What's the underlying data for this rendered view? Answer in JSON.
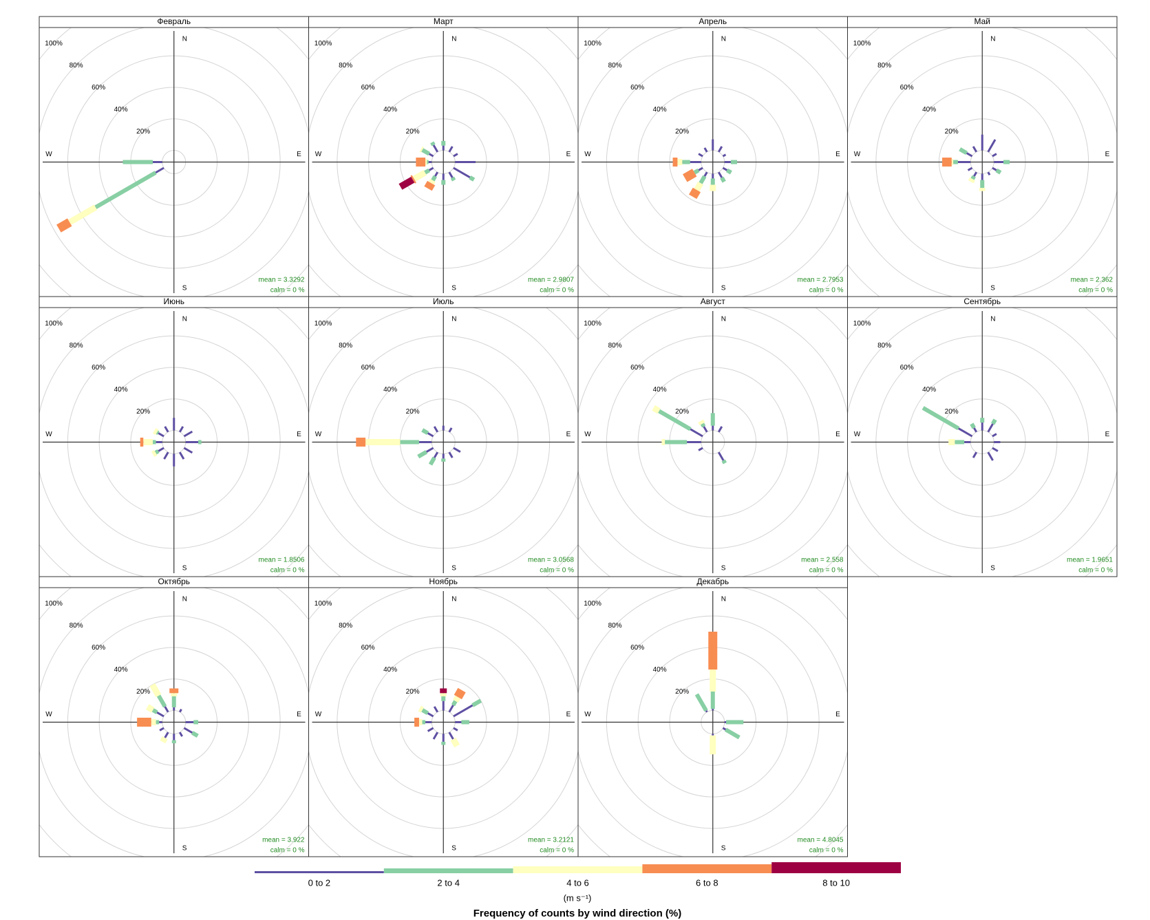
{
  "legend": {
    "title": "Frequency of counts by wind direction (%)",
    "unit": "(m s⁻¹)",
    "items": [
      {
        "name": "0 to 2",
        "color": "#5e4fa2"
      },
      {
        "name": "2 to 4",
        "color": "#88cfa4"
      },
      {
        "name": "4 to 6",
        "color": "#ffffbf"
      },
      {
        "name": "6 to 8",
        "color": "#f88d52"
      },
      {
        "name": "8 to 10",
        "color": "#9e0142"
      }
    ]
  },
  "compass": [
    "N",
    "E",
    "S",
    "W"
  ],
  "directions": [
    0,
    30,
    60,
    90,
    120,
    150,
    180,
    210,
    240,
    270,
    300,
    330
  ],
  "rticks": [
    {
      "value": 20,
      "label": "20%"
    },
    {
      "value": 40,
      "label": "40%"
    },
    {
      "value": 60,
      "label": "60%"
    },
    {
      "value": 80,
      "label": "80%"
    },
    {
      "value": 100,
      "label": "100%"
    }
  ],
  "chart_data": [
    {
      "type": "windrose",
      "title": "Февраль",
      "annotations": [
        "mean = 3.3292",
        "calm = 0 %"
      ],
      "values": [
        [
          0,
          0,
          0,
          0,
          0,
          0,
          0,
          0,
          6,
          6,
          0,
          0
        ],
        [
          0,
          0,
          0,
          0,
          0,
          0,
          0,
          0,
          44,
          19,
          0,
          0
        ],
        [
          0,
          0,
          0,
          0,
          0,
          0,
          0,
          0,
          19,
          0,
          0,
          0
        ],
        [
          0,
          0,
          0,
          0,
          0,
          0,
          0,
          0,
          8,
          0,
          0,
          0
        ],
        [
          0,
          0,
          0,
          0,
          0,
          0,
          0,
          0,
          0,
          0,
          0,
          0
        ]
      ]
    },
    {
      "type": "windrose",
      "title": "Март",
      "annotations": [
        "mean = 2.9807",
        "calm = 0 %"
      ],
      "values": [
        [
          3,
          4,
          3,
          13,
          12,
          4,
          4,
          3,
          3,
          2,
          3,
          5
        ],
        [
          3,
          0,
          0,
          0,
          3,
          2,
          3,
          3,
          3,
          1,
          5,
          2
        ],
        [
          0,
          0,
          0,
          0,
          0,
          0,
          0,
          2,
          8,
          1,
          1,
          0
        ],
        [
          0,
          0,
          0,
          0,
          0,
          0,
          0,
          4,
          1,
          6,
          0,
          0
        ],
        [
          0,
          0,
          0,
          0,
          0,
          0,
          0,
          0,
          9,
          0,
          0,
          0
        ]
      ]
    },
    {
      "type": "windrose",
      "title": "Апрель",
      "annotations": [
        "mean = 2.7953",
        "calm = 0 %"
      ],
      "values": [
        [
          7,
          4,
          2,
          4,
          3,
          4,
          3,
          3,
          3,
          7,
          3,
          3
        ],
        [
          0,
          0,
          0,
          4,
          3,
          3,
          4,
          5,
          3,
          5,
          0,
          0
        ],
        [
          0,
          0,
          0,
          0,
          0,
          0,
          4,
          5,
          0,
          3,
          0,
          0
        ],
        [
          0,
          0,
          0,
          0,
          0,
          0,
          0,
          5,
          7,
          3,
          0,
          0
        ],
        [
          0,
          0,
          0,
          0,
          0,
          0,
          0,
          0,
          0,
          0,
          0,
          0
        ]
      ]
    },
    {
      "type": "windrose",
      "title": "Май",
      "annotations": [
        "mean = 2.362",
        "calm = 0 %"
      ],
      "values": [
        [
          10,
          9,
          3,
          6,
          3,
          2,
          4,
          3,
          3,
          8,
          4,
          4
        ],
        [
          0,
          0,
          0,
          4,
          3,
          0,
          5,
          2,
          0,
          3,
          5,
          0
        ],
        [
          0,
          0,
          0,
          0,
          0,
          0,
          2,
          2,
          0,
          1,
          0,
          0
        ],
        [
          0,
          0,
          0,
          0,
          0,
          0,
          0,
          0,
          0,
          6,
          0,
          0
        ],
        [
          0,
          0,
          0,
          0,
          0,
          0,
          0,
          0,
          0,
          0,
          0,
          0
        ]
      ]
    },
    {
      "type": "windrose",
      "title": "Июнь",
      "annotations": [
        "mean = 1.8506",
        "calm = 0 %"
      ],
      "values": [
        [
          8,
          4,
          6,
          8,
          6,
          5,
          8,
          5,
          4,
          4,
          4,
          4
        ],
        [
          0,
          0,
          0,
          2,
          0,
          0,
          0,
          0,
          2,
          2,
          1,
          0
        ],
        [
          0,
          0,
          0,
          0,
          0,
          0,
          0,
          0,
          2,
          6,
          2,
          0
        ],
        [
          0,
          0,
          0,
          0,
          0,
          0,
          0,
          0,
          0,
          2,
          0,
          0
        ],
        [
          0,
          0,
          0,
          0,
          0,
          0,
          0,
          0,
          0,
          0,
          0,
          0
        ]
      ]
    },
    {
      "type": "windrose",
      "title": "Июль",
      "annotations": [
        "mean = 3.0568",
        "calm = 0 %"
      ],
      "values": [
        [
          3,
          3,
          0,
          0,
          5,
          4,
          3,
          4,
          5,
          8,
          4,
          4
        ],
        [
          0,
          0,
          0,
          0,
          0,
          0,
          2,
          5,
          6,
          12,
          4,
          0
        ],
        [
          0,
          0,
          0,
          0,
          0,
          0,
          0,
          0,
          0,
          22,
          0,
          0
        ],
        [
          0,
          0,
          0,
          0,
          0,
          0,
          0,
          0,
          0,
          6,
          0,
          0
        ],
        [
          0,
          0,
          0,
          0,
          0,
          0,
          0,
          0,
          0,
          0,
          0,
          0
        ]
      ]
    },
    {
      "type": "windrose",
      "title": "Август",
      "annotations": [
        "mean = 2.558",
        "calm = 0 %"
      ],
      "values": [
        [
          3,
          4,
          0,
          0,
          0,
          6,
          0,
          0,
          3,
          9,
          9,
          4
        ],
        [
          8,
          0,
          0,
          0,
          0,
          2,
          0,
          0,
          0,
          14,
          23,
          2
        ],
        [
          0,
          0,
          0,
          0,
          0,
          0,
          0,
          0,
          0,
          2,
          4,
          2
        ],
        [
          0,
          0,
          0,
          0,
          0,
          0,
          0,
          0,
          0,
          0,
          0,
          0
        ],
        [
          0,
          0,
          0,
          0,
          0,
          0,
          0,
          0,
          0,
          0,
          0,
          0
        ]
      ]
    },
    {
      "type": "windrose",
      "title": "Сентябрь",
      "annotations": [
        "mean = 1.9651",
        "calm = 0 %"
      ],
      "values": [
        [
          5,
          6,
          3,
          4,
          4,
          6,
          0,
          4,
          0,
          4,
          10,
          3
        ],
        [
          3,
          3,
          0,
          0,
          0,
          0,
          0,
          0,
          0,
          6,
          26,
          3
        ],
        [
          0,
          0,
          0,
          0,
          0,
          0,
          0,
          0,
          0,
          4,
          0,
          0
        ],
        [
          0,
          0,
          0,
          0,
          0,
          0,
          0,
          0,
          0,
          0,
          0,
          0
        ],
        [
          0,
          0,
          0,
          0,
          0,
          0,
          0,
          0,
          0,
          0,
          0,
          0
        ]
      ]
    },
    {
      "type": "windrose",
      "title": "Октябрь",
      "annotations": [
        "mean = 3.922",
        "calm = 0 %"
      ],
      "values": [
        [
          2,
          2,
          0,
          5,
          6,
          3,
          4,
          4,
          3,
          2,
          5,
          4
        ],
        [
          7,
          0,
          0,
          3,
          4,
          0,
          2,
          0,
          0,
          2,
          3,
          8
        ],
        [
          2,
          0,
          0,
          0,
          0,
          0,
          0,
          3,
          0,
          3,
          4,
          8
        ],
        [
          3,
          0,
          0,
          0,
          0,
          0,
          0,
          0,
          0,
          9,
          0,
          0
        ],
        [
          0,
          0,
          0,
          0,
          0,
          0,
          0,
          0,
          0,
          0,
          0,
          0
        ]
      ]
    },
    {
      "type": "windrose",
      "title": "Ноябрь",
      "annotations": [
        "mean = 3.2121",
        "calm = 0 %"
      ],
      "values": [
        [
          6,
          5,
          14,
          4,
          3,
          5,
          5,
          5,
          4,
          4,
          4,
          4
        ],
        [
          3,
          3,
          6,
          5,
          0,
          0,
          2,
          0,
          0,
          2,
          4,
          0
        ],
        [
          2,
          3,
          0,
          0,
          0,
          5,
          0,
          0,
          0,
          2,
          2,
          0
        ],
        [
          0,
          5,
          0,
          0,
          0,
          0,
          0,
          0,
          0,
          3,
          0,
          0
        ],
        [
          3,
          0,
          0,
          0,
          0,
          0,
          0,
          0,
          0,
          0,
          0,
          0
        ]
      ]
    },
    {
      "type": "windrose",
      "title": "Декабрь",
      "annotations": [
        "mean = 4.8045",
        "calm = 0 %"
      ],
      "values": [
        [
          1,
          0,
          0,
          1,
          2,
          0,
          1,
          0,
          0,
          0,
          0,
          1
        ],
        [
          11,
          0,
          0,
          11,
          10,
          0,
          0,
          0,
          0,
          0,
          0,
          12
        ],
        [
          14,
          0,
          0,
          0,
          0,
          0,
          12,
          0,
          0,
          0,
          0,
          0
        ],
        [
          24,
          0,
          0,
          0,
          0,
          0,
          0,
          0,
          0,
          0,
          0,
          0
        ],
        [
          0,
          0,
          0,
          0,
          0,
          0,
          0,
          0,
          0,
          0,
          0,
          0
        ]
      ]
    }
  ]
}
